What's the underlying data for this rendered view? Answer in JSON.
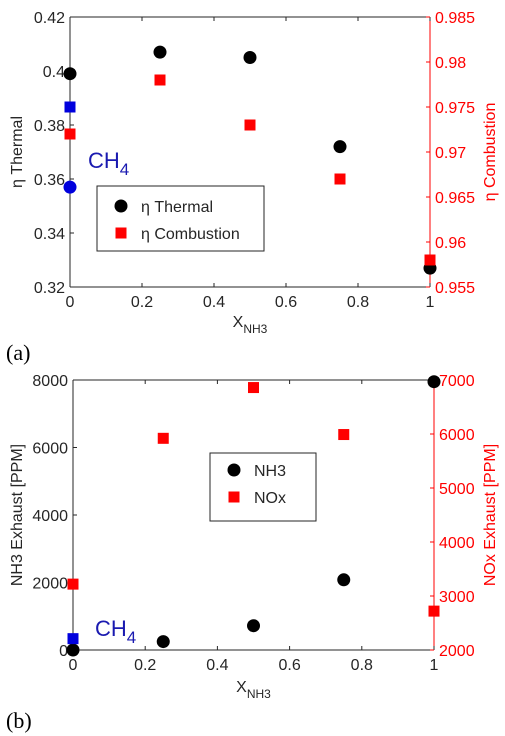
{
  "chart_data": [
    {
      "panel_label": "(a)",
      "type": "scatter",
      "xlabel": "X",
      "xlabel_sub": "NH3",
      "xlim": [
        0,
        1
      ],
      "xticks": [
        "0",
        "0.2",
        "0.4",
        "0.6",
        "0.8",
        "1"
      ],
      "ylabel_left": "η Thermal",
      "ylim_left": [
        0.32,
        0.42
      ],
      "yticks_left": [
        "0.32",
        "0.34",
        "0.36",
        "0.38",
        "0.4",
        "0.42"
      ],
      "ylabel_right": "η Combustion",
      "ylim_right": [
        0.955,
        0.985
      ],
      "yticks_right": [
        "0.955",
        "0.96",
        "0.965",
        "0.97",
        "0.975",
        "0.98",
        "0.985"
      ],
      "annotation": {
        "text": "CH",
        "sub": "4",
        "color": "#1a1ab0"
      },
      "legend_position": "lower-left",
      "grid": false,
      "series": [
        {
          "name": "η Thermal",
          "axis": "left",
          "marker": "circle",
          "color": "#000000",
          "x": [
            0,
            0.25,
            0.5,
            0.75,
            1
          ],
          "y": [
            0.399,
            0.407,
            0.405,
            0.372,
            0.327
          ]
        },
        {
          "name": "η Combustion",
          "axis": "right",
          "marker": "square",
          "color": "#ff0000",
          "x": [
            0,
            0.25,
            0.5,
            0.75,
            1
          ],
          "y": [
            0.972,
            0.978,
            0.973,
            0.967,
            0.958
          ]
        },
        {
          "axis": "left",
          "marker": "circle",
          "color": "#0000dd",
          "x": [
            0
          ],
          "y": [
            0.357
          ]
        },
        {
          "axis": "right",
          "marker": "square",
          "color": "#0000dd",
          "x": [
            0
          ],
          "y": [
            0.975
          ]
        }
      ]
    },
    {
      "panel_label": "(b)",
      "type": "scatter",
      "xlabel": "X",
      "xlabel_sub": "NH3",
      "xlim": [
        0,
        1
      ],
      "xticks": [
        "0",
        "0.2",
        "0.4",
        "0.6",
        "0.8",
        "1"
      ],
      "ylabel_left": "NH3 Exhaust [PPM]",
      "ylim_left": [
        0,
        8000
      ],
      "yticks_left": [
        "0",
        "2000",
        "4000",
        "6000",
        "8000"
      ],
      "ylabel_right": "NOx Exhaust [PPM]",
      "ylim_right": [
        2000,
        7000
      ],
      "yticks_right": [
        "2000",
        "3000",
        "4000",
        "5000",
        "6000",
        "7000"
      ],
      "annotation": {
        "text": "CH",
        "sub": "4",
        "color": "#1a1ab0"
      },
      "legend_position": "center",
      "grid": false,
      "series": [
        {
          "name": "NH3",
          "axis": "left",
          "marker": "circle",
          "color": "#000000",
          "x": [
            0,
            0.25,
            0.5,
            0.75,
            1
          ],
          "y": [
            0,
            250,
            720,
            2080,
            7950
          ]
        },
        {
          "name": "NOx",
          "axis": "right",
          "marker": "square",
          "color": "#ff0000",
          "x": [
            0,
            0.25,
            0.5,
            0.75,
            1
          ],
          "y": [
            3220,
            5920,
            6860,
            5990,
            2720
          ]
        },
        {
          "axis": "right",
          "marker": "square",
          "color": "#0000dd",
          "x": [
            0
          ],
          "y": [
            2210
          ]
        }
      ]
    }
  ]
}
